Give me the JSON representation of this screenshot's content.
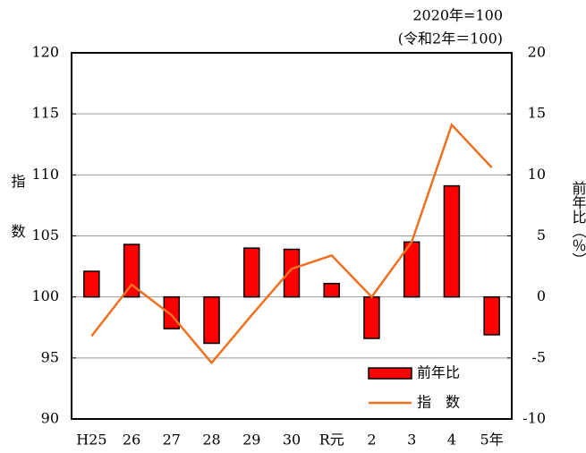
{
  "chart_data": {
    "type": "bar_line",
    "annotations": [
      "2020年=100",
      "(令和2年＝100)"
    ],
    "y_label": "指数",
    "y2_label": "前年比（％）",
    "categories": [
      "H25",
      "26",
      "27",
      "28",
      "29",
      "30",
      "R元",
      "2",
      "3",
      "4",
      "5年"
    ],
    "series": [
      {
        "name": "前年比",
        "type": "bar",
        "axis": "y2",
        "color": "#ff0000",
        "values": [
          2.1,
          4.3,
          -2.6,
          -3.8,
          4.0,
          3.9,
          1.1,
          -3.4,
          4.5,
          9.1,
          -3.1
        ]
      },
      {
        "name": "指　数",
        "type": "line",
        "axis": "y",
        "color": "#f07020",
        "values": [
          96.8,
          101.0,
          98.5,
          94.6,
          98.5,
          102.3,
          103.4,
          100.0,
          104.5,
          114.1,
          110.6
        ]
      }
    ],
    "ylim": [
      90,
      120
    ],
    "yticks": [
      90,
      95,
      100,
      105,
      110,
      115,
      120
    ],
    "y2lim": [
      -10,
      20
    ],
    "y2ticks": [
      -10,
      -5,
      0,
      5,
      10,
      15,
      20
    ],
    "grid": true,
    "legend": "lower right"
  }
}
